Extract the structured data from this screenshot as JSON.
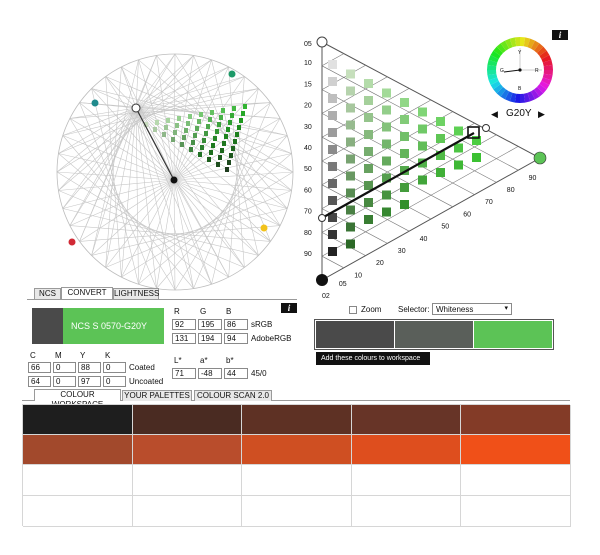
{
  "hue": {
    "label": "G20Y",
    "prev": "◀",
    "next": "▶",
    "info": "i",
    "wheel_letters": [
      "Y",
      "R",
      "B",
      "G"
    ]
  },
  "triangle": {
    "blackness_ticks": [
      "05",
      "10",
      "15",
      "20",
      "30",
      "40",
      "50",
      "60",
      "70",
      "80",
      "90",
      "02"
    ],
    "chromaticness_ticks": [
      "05",
      "10",
      "20",
      "30",
      "40",
      "50",
      "60",
      "70",
      "80",
      "90"
    ],
    "bottom_tick": "02"
  },
  "tabs": {
    "ncs": "NCS",
    "convert": "CONVERT",
    "lightness": "LIGHTNESS"
  },
  "convert": {
    "info": "i",
    "ncs_code": "NCS S 0570-G20Y",
    "rgb_headers": [
      "R",
      "G",
      "B"
    ],
    "srgb": [
      "92",
      "195",
      "86"
    ],
    "srgb_label": "sRGB",
    "adobergb": [
      "131",
      "194",
      "94"
    ],
    "adobergb_label": "AdobeRGB",
    "cmyk_headers": [
      "C",
      "M",
      "Y",
      "K"
    ],
    "coated": [
      "66",
      "0",
      "88",
      "0"
    ],
    "coated_label": "Coated",
    "uncoated": [
      "64",
      "0",
      "97",
      "0"
    ],
    "uncoated_label": "Uncoated",
    "lab_headers": [
      "L*",
      "a*",
      "b*"
    ],
    "lab": [
      "71",
      "-48",
      "44"
    ],
    "lab_extra": "45/0"
  },
  "selector": {
    "zoom_label": "Zoom",
    "selector_label": "Selector:",
    "selector_value": "Whiteness",
    "add_button": "Add these colours to workspace",
    "colors": [
      "#4a4a4a",
      "#5a5f5a",
      "#5cc356"
    ]
  },
  "bottom_tabs": {
    "workspace": "COLOUR WORKSPACE",
    "palettes": "YOUR PALETTES",
    "scan": "COLOUR SCAN 2.0"
  },
  "workspace": {
    "rows": [
      [
        "#1e1e1e",
        "#4a2b22",
        "#5e3124",
        "#673427",
        "#833b27"
      ],
      [
        "#a2492c",
        "#b94d2c",
        "#cf4f22",
        "#de4e1e",
        "#f05018"
      ],
      [
        "#ffffff",
        "#ffffff",
        "#ffffff",
        "#ffffff",
        "#ffffff"
      ],
      [
        "#ffffff",
        "#ffffff",
        "#ffffff",
        "#ffffff",
        "#ffffff"
      ]
    ]
  },
  "accent": {
    "ncs_green": "#5cc356",
    "circle_blue": "#1f8a8c",
    "circle_red": "#d12a35",
    "circle_yellow": "#f2c21b",
    "circle_green": "#1d9a68"
  }
}
